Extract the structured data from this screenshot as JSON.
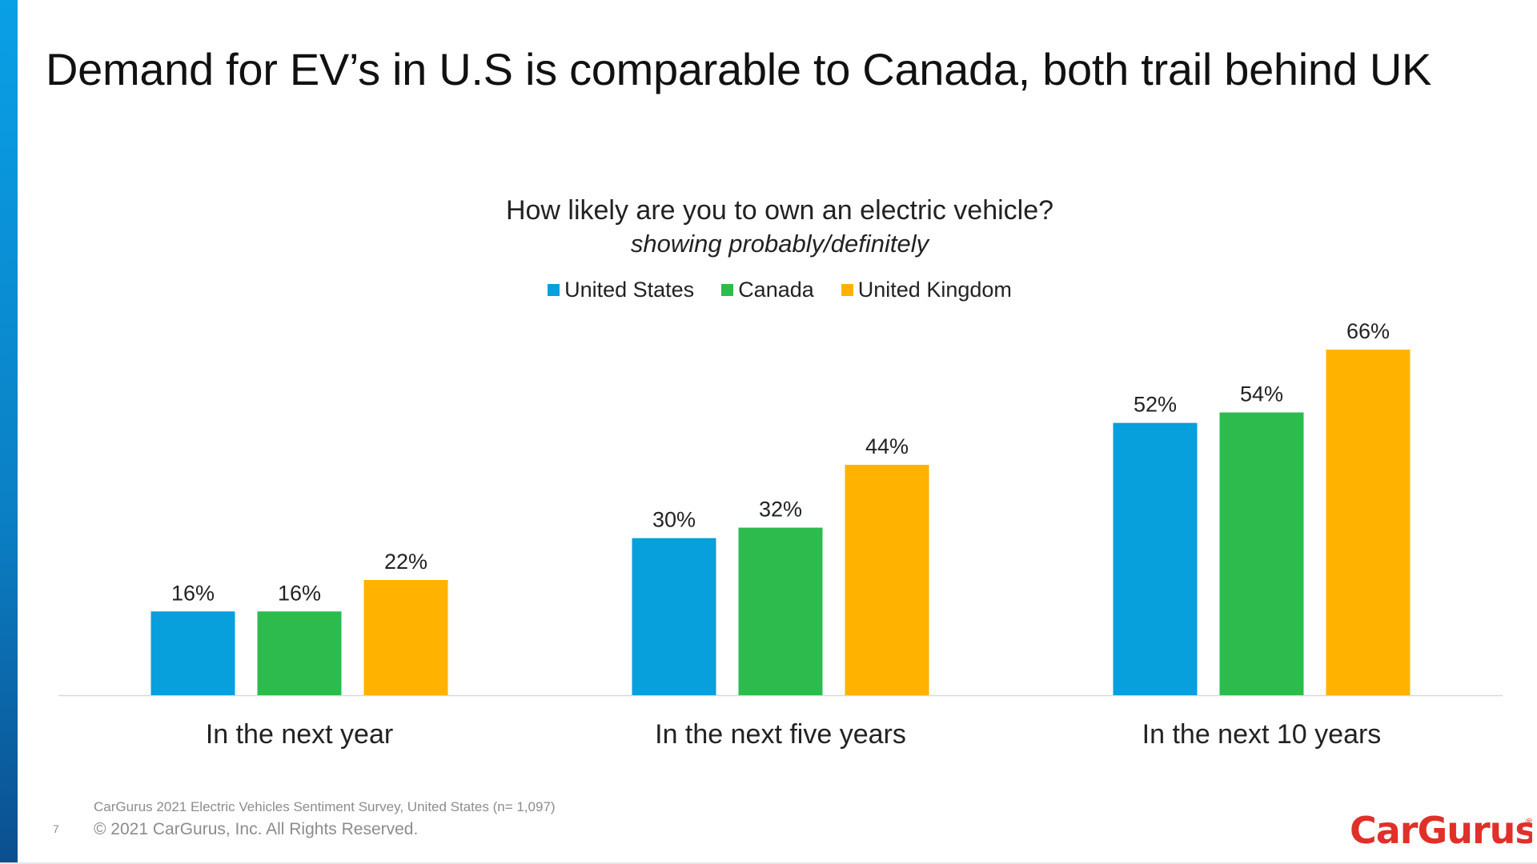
{
  "slide": {
    "title": "Demand for EV’s in U.S is comparable to Canada, both trail behind UK",
    "page_number": "7",
    "source_note": "CarGurus 2021 Electric Vehicles Sentiment Survey, United States (n= 1,097)",
    "copyright": "© 2021 CarGurus, Inc.  All Rights Reserved.",
    "logo_text": "CarGurus",
    "accent_color": "#0a9bdd"
  },
  "chart_data": {
    "type": "bar",
    "title": "How likely are you to own an electric vehicle?",
    "subtitle": "showing probably/definitely",
    "categories": [
      "In the next year",
      "In the next five years",
      "In the next 10 years"
    ],
    "series": [
      {
        "name": "United States",
        "color": "#079fdc",
        "values": [
          16,
          30,
          52
        ],
        "labels": [
          "16%",
          "30%",
          "52%"
        ]
      },
      {
        "name": "Canada",
        "color": "#2dbb4e",
        "values": [
          16,
          32,
          54
        ],
        "labels": [
          "16%",
          "32%",
          "54%"
        ]
      },
      {
        "name": "United Kingdom",
        "color": "#ffb300",
        "values": [
          22,
          44,
          66
        ],
        "labels": [
          "22%",
          "44%",
          "66%"
        ]
      }
    ],
    "ylim": [
      0,
      66
    ],
    "legend_position": "top-center",
    "grid": false,
    "xlabel": "",
    "ylabel": ""
  }
}
